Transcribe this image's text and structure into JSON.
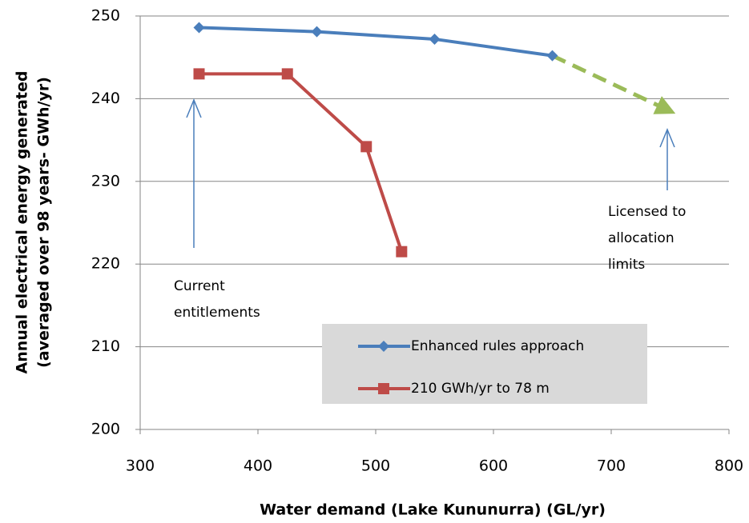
{
  "chart_data": {
    "type": "line",
    "xlabel": "Water demand (Lake Kununurra) (GL/yr)",
    "ylabel": [
      "Annual electrical energy generated",
      "(averaged over 98 years- GWh/yr)"
    ],
    "xlim": [
      300,
      800
    ],
    "xticks": [
      300,
      400,
      500,
      600,
      700,
      800
    ],
    "ylim": [
      200,
      250
    ],
    "yticks": [
      200,
      210,
      220,
      230,
      240,
      250
    ],
    "grid": true,
    "legend": "lower right",
    "series": [
      {
        "name": "Enhanced rules approach",
        "color": "#4a7ebb",
        "marker": "diamond",
        "x": [
          350,
          450,
          550,
          650
        ],
        "values": [
          248.6,
          248.1,
          247.2,
          245.2
        ]
      },
      {
        "name": "210 GWh/yr to 78 m",
        "color": "#be4b48",
        "marker": "square",
        "x": [
          350,
          425,
          492,
          522
        ],
        "values": [
          243,
          243,
          234.2,
          221.5
        ]
      }
    ],
    "projection": {
      "color": "#9bbb59",
      "x": [
        650,
        750
      ],
      "values": [
        245.2,
        238.5
      ]
    },
    "annotations": [
      {
        "lines": [
          "Current",
          "entitlements"
        ]
      },
      {
        "lines": [
          "Licensed to",
          "allocation",
          "limits"
        ]
      }
    ]
  }
}
